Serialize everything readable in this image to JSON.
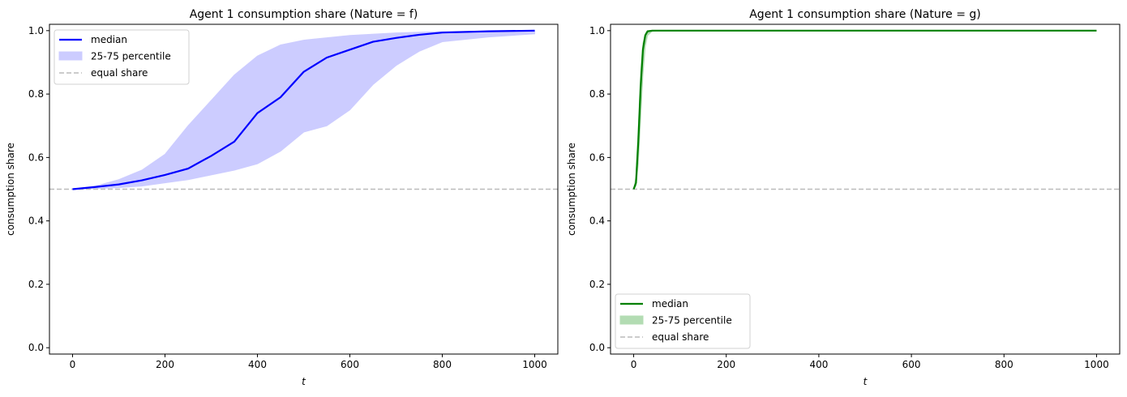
{
  "chart_data": [
    {
      "type": "line",
      "title": "Agent 1 consumption share (Nature = f)",
      "xlabel": "t",
      "ylabel": "consumption share",
      "xlim": [
        -50,
        1050
      ],
      "ylim": [
        -0.02,
        1.02
      ],
      "xticks": [
        0,
        200,
        400,
        600,
        800,
        1000
      ],
      "yticks": [
        0.0,
        0.2,
        0.4,
        0.6,
        0.8,
        1.0
      ],
      "grid": false,
      "legend_placement": "upper-left",
      "color": "#0000ff",
      "band_color": "#ccccff",
      "legend": [
        "median",
        "25-75 percentile",
        "equal share"
      ],
      "equal_share": 0.5,
      "median": {
        "x": [
          0,
          50,
          100,
          150,
          200,
          250,
          300,
          350,
          400,
          450,
          500,
          550,
          600,
          650,
          700,
          750,
          800,
          900,
          1000
        ],
        "y": [
          0.5,
          0.507,
          0.515,
          0.528,
          0.545,
          0.565,
          0.605,
          0.65,
          0.74,
          0.79,
          0.87,
          0.915,
          0.94,
          0.965,
          0.977,
          0.987,
          0.994,
          0.998,
          1.0
        ]
      },
      "p75": {
        "x": [
          0,
          50,
          100,
          150,
          200,
          250,
          300,
          350,
          400,
          450,
          500,
          600,
          700,
          800,
          1000
        ],
        "y": [
          0.5,
          0.51,
          0.53,
          0.56,
          0.61,
          0.7,
          0.78,
          0.86,
          0.92,
          0.955,
          0.97,
          0.985,
          0.993,
          0.997,
          1.0
        ]
      },
      "p25": {
        "x": [
          0,
          50,
          100,
          150,
          200,
          250,
          300,
          350,
          400,
          450,
          500,
          550,
          600,
          650,
          700,
          750,
          800,
          900,
          1000
        ],
        "y": [
          0.5,
          0.502,
          0.505,
          0.51,
          0.52,
          0.53,
          0.545,
          0.56,
          0.58,
          0.62,
          0.68,
          0.7,
          0.75,
          0.83,
          0.89,
          0.935,
          0.965,
          0.98,
          0.99
        ]
      }
    },
    {
      "type": "line",
      "title": "Agent 1 consumption share (Nature = g)",
      "xlabel": "t",
      "ylabel": "consumption share",
      "xlim": [
        -50,
        1050
      ],
      "ylim": [
        -0.02,
        1.02
      ],
      "xticks": [
        0,
        200,
        400,
        600,
        800,
        1000
      ],
      "yticks": [
        0.0,
        0.2,
        0.4,
        0.6,
        0.8,
        1.0
      ],
      "grid": false,
      "legend_placement": "lower-left",
      "color": "#008000",
      "band_color": "#b3dcb3",
      "legend": [
        "median",
        "25-75 percentile",
        "equal share"
      ],
      "equal_share": 0.5,
      "median": {
        "x": [
          0,
          5,
          10,
          15,
          20,
          25,
          30,
          40,
          1000
        ],
        "y": [
          0.5,
          0.52,
          0.65,
          0.82,
          0.94,
          0.985,
          0.998,
          1.0,
          1.0
        ]
      },
      "p75": {
        "x": [
          0,
          5,
          10,
          15,
          20,
          25,
          30,
          1000
        ],
        "y": [
          0.5,
          0.54,
          0.7,
          0.87,
          0.96,
          0.99,
          1.0,
          1.0
        ]
      },
      "p25": {
        "x": [
          0,
          5,
          10,
          15,
          20,
          25,
          30,
          40,
          50,
          1000
        ],
        "y": [
          0.5,
          0.51,
          0.58,
          0.72,
          0.86,
          0.95,
          0.985,
          0.998,
          1.0,
          1.0
        ]
      }
    }
  ]
}
